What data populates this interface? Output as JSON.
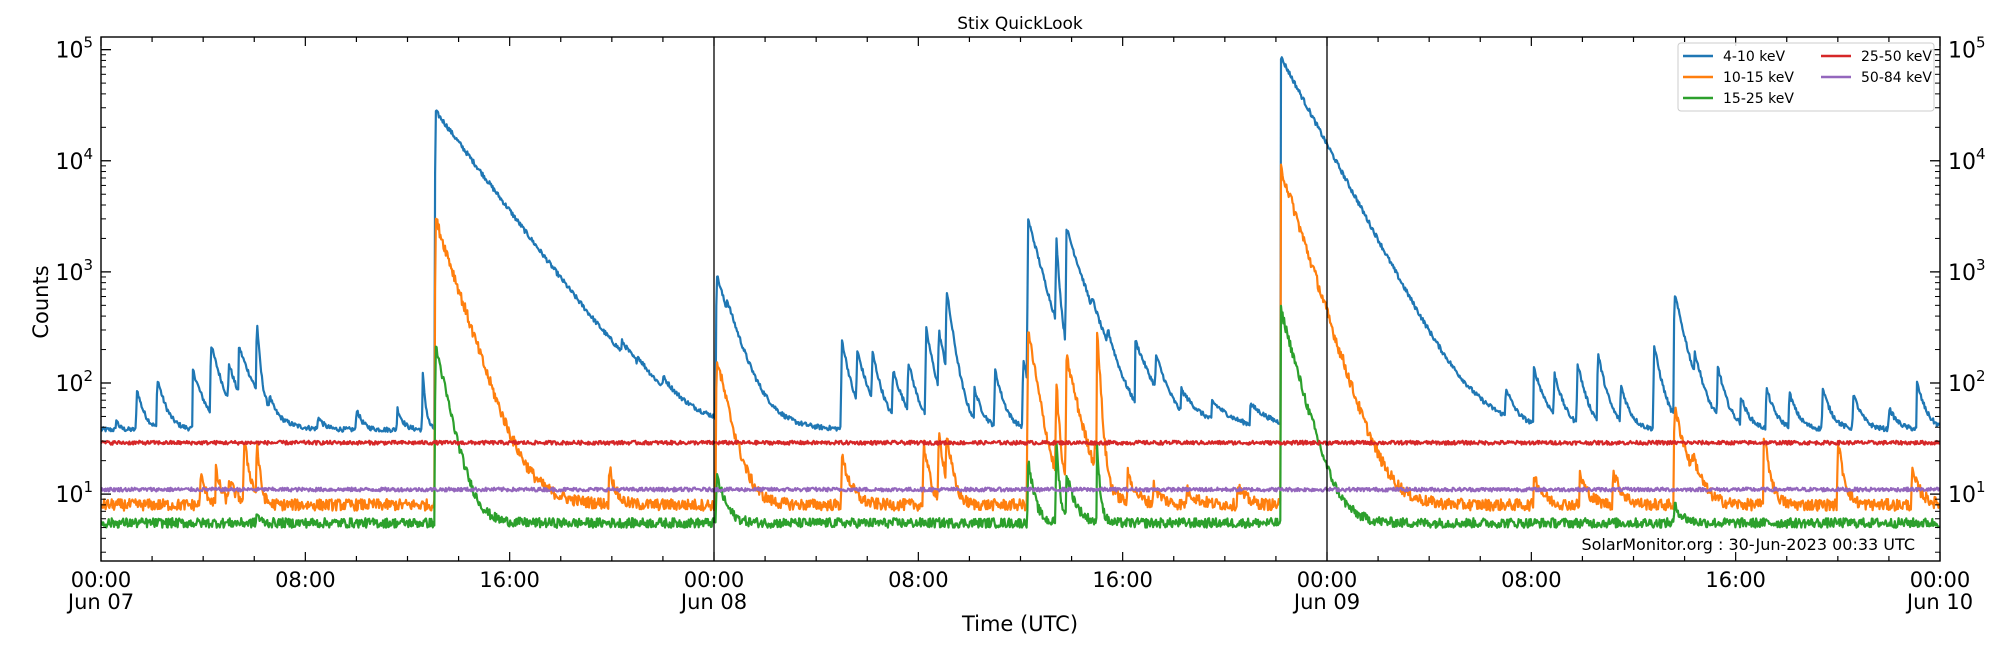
{
  "chart_data": {
    "type": "line",
    "title": "Stix QuickLook",
    "xlabel": "Time (UTC)",
    "ylabel": "Counts",
    "yscale": "log",
    "xlim_hours": [
      0,
      72
    ],
    "ylim": [
      2.5,
      130000
    ],
    "grid": false,
    "legend_position": "top-right",
    "credit": "SolarMonitor.org : 30-Jun-2023 00:33 UTC",
    "day_boundaries_hours": [
      24,
      48
    ],
    "x_ticks": [
      {
        "hour": 0,
        "time": "00:00",
        "date": "Jun 07"
      },
      {
        "hour": 8,
        "time": "08:00",
        "date": ""
      },
      {
        "hour": 16,
        "time": "16:00",
        "date": ""
      },
      {
        "hour": 24,
        "time": "00:00",
        "date": "Jun 08"
      },
      {
        "hour": 32,
        "time": "08:00",
        "date": ""
      },
      {
        "hour": 40,
        "time": "16:00",
        "date": ""
      },
      {
        "hour": 48,
        "time": "00:00",
        "date": "Jun 09"
      },
      {
        "hour": 56,
        "time": "08:00",
        "date": ""
      },
      {
        "hour": 64,
        "time": "16:00",
        "date": ""
      },
      {
        "hour": 72,
        "time": "00:00",
        "date": "Jun 10"
      }
    ],
    "y_ticks": [
      {
        "value": 10,
        "base": "10",
        "exp": "1"
      },
      {
        "value": 100,
        "base": "10",
        "exp": "2"
      },
      {
        "value": 1000,
        "base": "10",
        "exp": "3"
      },
      {
        "value": 10000,
        "base": "10",
        "exp": "4"
      },
      {
        "value": 100000,
        "base": "10",
        "exp": "5"
      }
    ],
    "series": [
      {
        "name": "4-10 keV",
        "color": "#1f77b4",
        "baseline": 38,
        "noise": 0.05,
        "flares": [
          [
            0.6,
            48,
            0.1
          ],
          [
            1.4,
            90,
            0.25
          ],
          [
            2.2,
            110,
            0.3
          ],
          [
            3.6,
            130,
            0.4
          ],
          [
            4.3,
            210,
            0.4
          ],
          [
            5.0,
            120,
            0.4
          ],
          [
            5.4,
            170,
            0.6
          ],
          [
            6.1,
            330,
            0.1
          ],
          [
            6.6,
            55,
            0.2
          ],
          [
            8.5,
            50,
            0.2
          ],
          [
            10.0,
            60,
            0.2
          ],
          [
            11.6,
            60,
            0.2
          ],
          [
            12.6,
            120,
            0.1
          ],
          [
            13.1,
            28000,
            1.4
          ],
          [
            15.9,
            80,
            0.2
          ],
          [
            20.4,
            85,
            0.6
          ],
          [
            21.0,
            60,
            0.5
          ],
          [
            22.0,
            60,
            0.5
          ],
          [
            24.1,
            950,
            0.5
          ],
          [
            24.5,
            150,
            0.8
          ],
          [
            29.0,
            250,
            0.3
          ],
          [
            29.6,
            170,
            0.4
          ],
          [
            30.2,
            160,
            0.3
          ],
          [
            31.0,
            120,
            0.4
          ],
          [
            31.6,
            140,
            0.3
          ],
          [
            32.3,
            300,
            0.3
          ],
          [
            32.8,
            250,
            0.3
          ],
          [
            33.1,
            600,
            0.25
          ],
          [
            34.2,
            80,
            0.3
          ],
          [
            35.0,
            130,
            0.3
          ],
          [
            36.1,
            160,
            0.3
          ],
          [
            36.3,
            2900,
            0.5
          ],
          [
            37.4,
            1800,
            0.1
          ],
          [
            37.8,
            2300,
            0.6
          ],
          [
            38.8,
            140,
            0.4
          ],
          [
            39.4,
            130,
            0.3
          ],
          [
            40.5,
            210,
            0.6
          ],
          [
            41.3,
            130,
            0.4
          ],
          [
            42.3,
            70,
            0.8
          ],
          [
            43.5,
            60,
            0.8
          ],
          [
            45.0,
            60,
            0.8
          ],
          [
            46.2,
            85000,
            1.0
          ],
          [
            48.5,
            90,
            0.8
          ],
          [
            49.1,
            85,
            0.5
          ],
          [
            55.0,
            80,
            0.3
          ],
          [
            56.1,
            130,
            0.4
          ],
          [
            56.9,
            110,
            0.3
          ],
          [
            57.8,
            150,
            0.3
          ],
          [
            58.6,
            180,
            0.3
          ],
          [
            59.5,
            90,
            0.3
          ],
          [
            60.8,
            220,
            0.3
          ],
          [
            61.6,
            640,
            0.4
          ],
          [
            62.4,
            110,
            0.3
          ],
          [
            63.3,
            130,
            0.3
          ],
          [
            64.2,
            70,
            0.3
          ],
          [
            65.2,
            90,
            0.3
          ],
          [
            66.1,
            80,
            0.3
          ],
          [
            67.4,
            90,
            0.3
          ],
          [
            68.6,
            80,
            0.3
          ],
          [
            70.0,
            60,
            0.3
          ],
          [
            71.1,
            100,
            0.3
          ]
        ]
      },
      {
        "name": "10-15 keV",
        "color": "#ff7f0e",
        "baseline": 8,
        "noise": 0.12,
        "flares": [
          [
            3.9,
            15,
            0.2
          ],
          [
            4.5,
            16,
            0.2
          ],
          [
            5.0,
            13,
            0.3
          ],
          [
            5.6,
            30,
            0.2
          ],
          [
            6.1,
            30,
            0.1
          ],
          [
            13.1,
            3000,
            0.6
          ],
          [
            13.5,
            40,
            1.2
          ],
          [
            19.9,
            18,
            0.2
          ],
          [
            24.1,
            170,
            0.4
          ],
          [
            29.0,
            22,
            0.3
          ],
          [
            32.2,
            30,
            0.2
          ],
          [
            32.8,
            35,
            0.2
          ],
          [
            33.1,
            30,
            0.2
          ],
          [
            36.3,
            300,
            0.3
          ],
          [
            37.4,
            100,
            0.1
          ],
          [
            37.8,
            170,
            0.4
          ],
          [
            38.9,
            18,
            0.3
          ],
          [
            39.0,
            300,
            0.1
          ],
          [
            40.2,
            15,
            0.3
          ],
          [
            41.2,
            12,
            0.3
          ],
          [
            42.5,
            11,
            0.4
          ],
          [
            44.5,
            12,
            0.3
          ],
          [
            46.2,
            8500,
            0.6
          ],
          [
            47.4,
            50,
            0.2
          ],
          [
            48.6,
            12,
            0.3
          ],
          [
            56.1,
            15,
            0.3
          ],
          [
            57.9,
            15,
            0.3
          ],
          [
            59.2,
            16,
            0.3
          ],
          [
            61.6,
            60,
            0.4
          ],
          [
            62.3,
            15,
            0.3
          ],
          [
            65.1,
            35,
            0.2
          ],
          [
            68.0,
            30,
            0.2
          ],
          [
            70.9,
            16,
            0.3
          ]
        ]
      },
      {
        "name": "15-25 keV",
        "color": "#2ca02c",
        "baseline": 5.5,
        "noise": 0.1,
        "flares": [
          [
            6.1,
            7,
            0.1
          ],
          [
            13.1,
            220,
            0.4
          ],
          [
            24.1,
            15,
            0.3
          ],
          [
            36.3,
            20,
            0.2
          ],
          [
            37.4,
            30,
            0.1
          ],
          [
            37.8,
            15,
            0.3
          ],
          [
            39.0,
            25,
            0.1
          ],
          [
            46.2,
            450,
            0.5
          ],
          [
            47.4,
            8,
            0.2
          ],
          [
            61.6,
            8,
            0.3
          ]
        ]
      },
      {
        "name": "25-50 keV",
        "color": "#d62728",
        "baseline": 29,
        "noise": 0.04,
        "flares": []
      },
      {
        "name": "50-84 keV",
        "color": "#9467bd",
        "baseline": 11,
        "noise": 0.04,
        "flares": []
      }
    ]
  }
}
